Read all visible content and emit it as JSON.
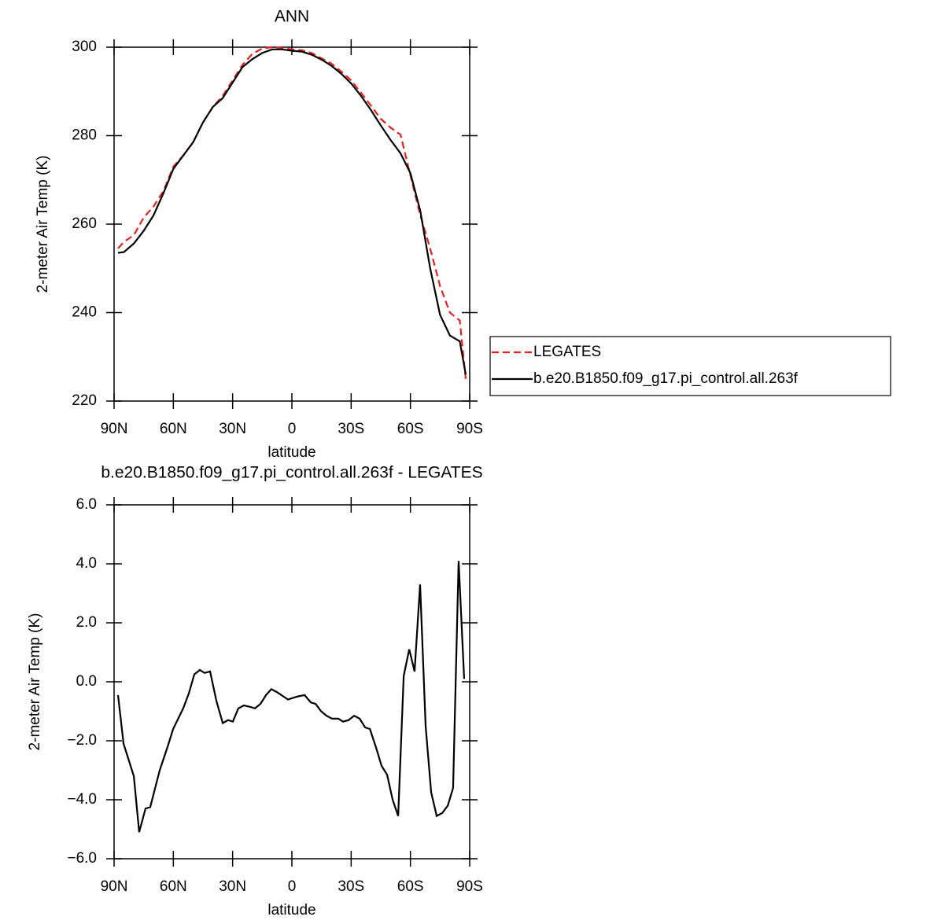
{
  "chart_data": [
    {
      "type": "line",
      "title": "ANN",
      "x_label": "latitude",
      "y_label": "2-meter Air Temp (K)",
      "x": [
        88,
        85,
        80,
        75,
        70,
        65,
        60,
        55,
        50,
        45,
        40,
        35,
        30,
        25,
        20,
        15,
        10,
        5,
        0,
        -5,
        -10,
        -15,
        -20,
        -25,
        -30,
        -35,
        -40,
        -45,
        -50,
        -55,
        -60,
        -65,
        -70,
        -75,
        -80,
        -85,
        -88
      ],
      "series": [
        {
          "name": "LEGATES",
          "color": "#e8201e",
          "dash": true,
          "values": [
            254.5,
            256,
            257.5,
            261.5,
            264,
            267.5,
            273,
            275.5,
            278.5,
            283,
            286.5,
            289,
            292.5,
            296,
            298.5,
            299.7,
            300,
            299.8,
            299.5,
            299.3,
            298.7,
            297.5,
            296.3,
            294.5,
            292.5,
            289.7,
            286.8,
            283.8,
            281.8,
            280.2,
            271,
            262,
            254.5,
            246,
            240,
            238.2,
            225
          ]
        },
        {
          "name": "b.e20.B1850.f09_g17.pi_control.all.263f",
          "color": "#000000",
          "dash": false,
          "values": [
            253.5,
            253.7,
            255.6,
            258.5,
            262,
            267,
            272.5,
            275.5,
            278.5,
            283,
            286.5,
            288.5,
            292,
            295.5,
            297.3,
            298.7,
            299.5,
            299.5,
            299.2,
            299,
            298.3,
            297.2,
            295.8,
            294,
            291.8,
            289,
            285.8,
            282.3,
            279,
            276,
            271.5,
            263,
            250,
            239.5,
            234.8,
            233.5,
            226
          ]
        }
      ],
      "xlim": [
        90,
        -90
      ],
      "xticks": [
        {
          "value": 90,
          "label": "90N"
        },
        {
          "value": 60,
          "label": "60N"
        },
        {
          "value": 30,
          "label": "30N"
        },
        0,
        {
          "value": -30,
          "label": "30S"
        },
        {
          "value": -60,
          "label": "60S"
        },
        {
          "value": -90,
          "label": "90S"
        }
      ],
      "ylim": [
        220,
        300
      ],
      "yticks": [
        220,
        240,
        260,
        280,
        300
      ],
      "legend": "right"
    },
    {
      "type": "line",
      "title": "b.e20.B1850.f09_g17.pi_control.all.263f - LEGATES",
      "x_label": "latitude",
      "y_label": "2-meter Air Temp (K)",
      "x": [
        88.0,
        85.2,
        80.0,
        77.3,
        74.1,
        71.7,
        66.9,
        62.9,
        60.1,
        55.0,
        52.2,
        49.4,
        46.6,
        44.2,
        41.4,
        38.2,
        35.0,
        32.3,
        29.9,
        27.1,
        24.3,
        21.1,
        18.7,
        15.9,
        13.1,
        10.4,
        7.6,
        2.0,
        -2.8,
        -6.4,
        -9.6,
        -12.0,
        -14.8,
        -17.5,
        -20.3,
        -23.5,
        -25.9,
        -28.7,
        -31.5,
        -34.3,
        -37.1,
        -39.5,
        -42.7,
        -45.4,
        -48.2,
        -51.0,
        -53.8,
        -56.6,
        -59.4,
        -62.1,
        -64.9,
        -67.7,
        -70.5,
        -73.3,
        -76.1,
        -78.9,
        -81.6,
        -84.4,
        -87.2
      ],
      "series": [
        {
          "color": "#000000",
          "values": [
            -0.45,
            -2.1,
            -3.2,
            -5.1,
            -4.3,
            -4.25,
            -3.0,
            -2.2,
            -1.6,
            -0.9,
            -0.4,
            0.25,
            0.4,
            0.3,
            0.35,
            -0.65,
            -1.4,
            -1.3,
            -1.35,
            -0.9,
            -0.8,
            -0.85,
            -0.9,
            -0.75,
            -0.45,
            -0.25,
            -0.35,
            -0.6,
            -0.5,
            -0.45,
            -0.7,
            -0.75,
            -1.0,
            -1.15,
            -1.25,
            -1.25,
            -1.35,
            -1.3,
            -1.15,
            -1.25,
            -1.55,
            -1.6,
            -2.25,
            -2.85,
            -3.15,
            -4.0,
            -4.55,
            0.2,
            1.1,
            0.35,
            3.3,
            -1.5,
            -3.75,
            -4.55,
            -4.45,
            -4.2,
            -3.6,
            4.1,
            0.1
          ]
        }
      ],
      "xlim": [
        90,
        -90
      ],
      "xticks": [
        {
          "value": 90,
          "label": "90N"
        },
        {
          "value": 60,
          "label": "60N"
        },
        {
          "value": 30,
          "label": "30N"
        },
        0,
        {
          "value": -30,
          "label": "30S"
        },
        {
          "value": -60,
          "label": "60S"
        },
        {
          "value": -90,
          "label": "90S"
        }
      ],
      "ylim": [
        -6,
        6
      ],
      "yticks": [
        {
          "value": -6,
          "label": "−6.0"
        },
        {
          "value": -4,
          "label": "−4.0"
        },
        {
          "value": -2,
          "label": "−2.0"
        },
        {
          "value": 0,
          "label": "0.0"
        },
        {
          "value": 2,
          "label": "2.0"
        },
        {
          "value": 4,
          "label": "4.0"
        },
        {
          "value": 6,
          "label": "6.0"
        }
      ]
    }
  ]
}
